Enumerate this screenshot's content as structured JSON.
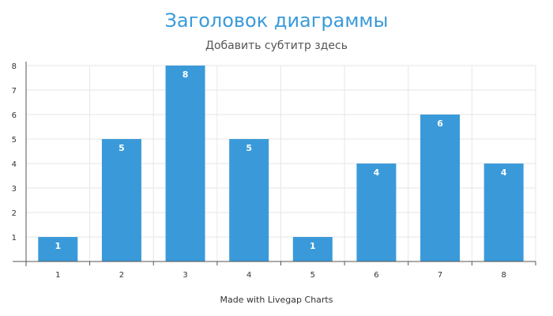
{
  "chart_data": {
    "type": "bar",
    "title": "Заголовок диаграммы",
    "subtitle": "Добавить субтитр здесь",
    "categories": [
      "1",
      "2",
      "3",
      "4",
      "5",
      "6",
      "7",
      "8"
    ],
    "values": [
      1,
      5,
      8,
      5,
      1,
      4,
      6,
      4
    ],
    "data_labels": [
      "1",
      "5",
      "8",
      "5",
      "1",
      "4",
      "6",
      "4"
    ],
    "yticks": [
      "1",
      "2",
      "3",
      "4",
      "5",
      "6",
      "7",
      "8"
    ],
    "ylim": [
      0,
      8
    ],
    "grid": true,
    "bar_color": "#3a9ad9"
  },
  "footer": "Made with Livegap Charts"
}
